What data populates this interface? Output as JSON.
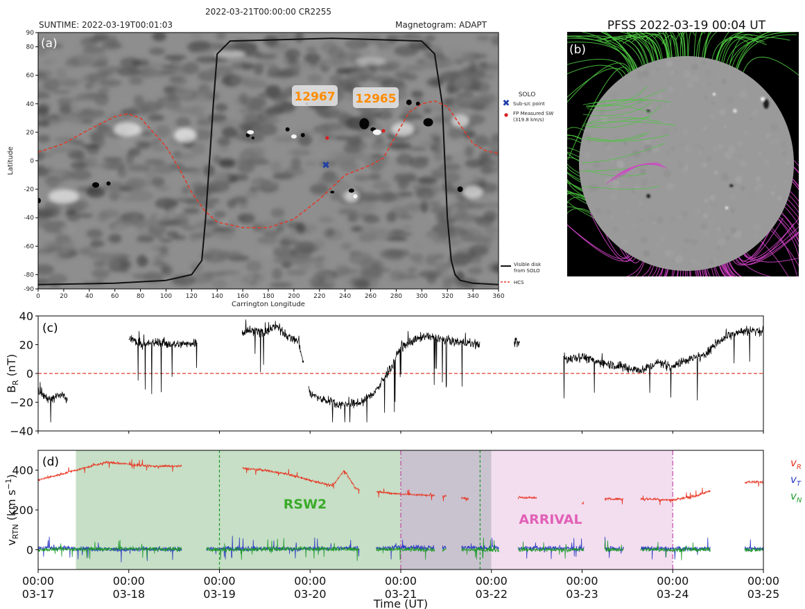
{
  "panel_a": {
    "panel_label": "(a)",
    "top_title": "2022-03-21T00:00:00 CR2255",
    "suntime": "SUNTIME: 2022-03-19T00:01:03",
    "magnetogram": "Magnetogram: ADAPT",
    "ar_labels": [
      "12967",
      "12965"
    ],
    "legend_top": {
      "title": "SOLO",
      "items": [
        "Sub-s/c point",
        "FP Measured SW",
        "(319.8 km/s)"
      ]
    },
    "legend_bottom": {
      "items": [
        "Visible disk",
        "from SOLO",
        "HCS"
      ]
    },
    "colors": {
      "disk": "#111111",
      "hcs": "#e03a2a",
      "subsc": "#1f3fa8",
      "fp": "#d62020",
      "ar_text": "#ff8c00"
    }
  },
  "panel_b": {
    "title": "PFSS 2022-03-19 00:04 UT",
    "panel_label": "(b)",
    "colors": {
      "open_green": "#4cc640",
      "open_magenta": "#d243c8",
      "disk": "#9a9a9a",
      "background": "#000000"
    }
  },
  "panel_c": {
    "panel_label": "(c)"
  },
  "panel_d": {
    "panel_label": "(d)",
    "region_labels": [
      "RSW2",
      "ARRIVAL"
    ],
    "legend": [
      "v_R",
      "v_T",
      "v_N"
    ],
    "colors": {
      "vR": "#e8321f",
      "vT": "#2b38c4",
      "vN": "#1f9a2b",
      "rsw2_shade": "#bcd9bc",
      "overlap_shade": "#c6c0cc",
      "arrival_shade": "#f2dcef",
      "rsw2_text": "#3aaa2a",
      "arrival_text": "#e160b6"
    }
  },
  "chart_data": [
    {
      "type": "line",
      "panel": "(a)",
      "title": "2022-03-21T00:00:00 CR2255",
      "xlabel": "Carrington Longitude",
      "ylabel": "Latitude",
      "xlim": [
        0,
        360
      ],
      "ylim": [
        -90,
        90
      ],
      "xticks": [
        0,
        20,
        40,
        60,
        80,
        100,
        120,
        140,
        160,
        180,
        200,
        220,
        240,
        260,
        280,
        300,
        320,
        340,
        360
      ],
      "yticks": [
        90,
        80,
        60,
        40,
        20,
        0,
        -20,
        -40,
        -60,
        -80,
        -90
      ],
      "series": [
        {
          "name": "HCS",
          "x": [
            0,
            20,
            40,
            60,
            70,
            80,
            100,
            110,
            120,
            130,
            140,
            160,
            180,
            200,
            220,
            240,
            260,
            270,
            280,
            290,
            300,
            310,
            320,
            330,
            340,
            350,
            360
          ],
          "y": [
            6,
            12,
            22,
            31,
            33,
            30,
            10,
            -5,
            -22,
            -35,
            -43,
            -47,
            -47,
            -41,
            -27,
            -10,
            -3,
            2,
            18,
            34,
            40,
            42,
            38,
            25,
            12,
            7,
            5
          ]
        },
        {
          "name": "Visible disk from SOLO",
          "x": [
            0,
            60,
            100,
            120,
            128,
            131,
            134,
            137,
            140,
            150,
            230,
            300,
            310,
            316,
            318,
            320,
            323,
            326,
            330,
            340,
            360
          ],
          "y": [
            -87,
            -86,
            -84,
            -80,
            -70,
            -40,
            0,
            40,
            75,
            84,
            86,
            84,
            75,
            40,
            0,
            -40,
            -70,
            -80,
            -84,
            -86,
            -87
          ]
        }
      ],
      "points": [
        {
          "name": "Sub-s/c point",
          "x": 225,
          "y": -3
        },
        {
          "name": "FP Measured SW",
          "x": 226,
          "y": 16
        },
        {
          "name": "FP Measured SW",
          "x": 270,
          "y": 21
        }
      ],
      "annotations": [
        {
          "text": "12967",
          "x": 218,
          "y": 45
        },
        {
          "text": "12965",
          "x": 264,
          "y": 43
        }
      ]
    },
    {
      "type": "line",
      "panel": "(c)",
      "xlabel": "",
      "ylabel": "B_R (nT)",
      "xlim": [
        "03-17 00:00",
        "03-25 00:00"
      ],
      "ylim": [
        -40,
        40
      ],
      "yticks": [
        -40,
        -20,
        0,
        20,
        40
      ],
      "reference_line": 0,
      "series": [
        {
          "name": "",
          "x": [
            "03-17 00:00",
            "03-17 03:00",
            "03-17 06:00",
            "03-17 09:00",
            "03-17 12:00",
            "03-17 16:00",
            "03-17 20:00",
            "03-18 00:00",
            "03-18 04:00",
            "03-18 08:00",
            "03-18 12:00",
            "03-18 16:00",
            "03-18 20:00",
            "03-19 00:00",
            "03-19 03:00",
            "03-19 06:00",
            "03-19 09:00",
            "03-19 12:00",
            "03-19 15:00",
            "03-19 18:00",
            "03-19 21:00",
            "03-20 00:00",
            "03-20 03:00",
            "03-20 06:00",
            "03-20 09:00",
            "03-20 12:00",
            "03-20 15:00",
            "03-20 18:00",
            "03-20 21:00",
            "03-21 00:00",
            "03-21 03:00",
            "03-21 06:00",
            "03-21 09:00",
            "03-21 12:00",
            "03-21 15:00",
            "03-21 18:00",
            "03-21 21:00",
            "03-22 00:00",
            "03-22 06:00",
            "03-22 09:00",
            "03-22 12:00",
            "03-22 16:00",
            "03-22 20:00",
            "03-23 00:00",
            "03-23 04:00",
            "03-23 08:00",
            "03-23 12:00",
            "03-23 16:00",
            "03-23 20:00",
            "03-24 00:00",
            "03-24 04:00",
            "03-24 08:00",
            "03-24 12:00",
            "03-24 16:00",
            "03-24 20:00",
            "03-25 00:00"
          ],
          "y": [
            -12,
            -18,
            -15,
            -20,
            -14,
            -10,
            null,
            24,
            20,
            22,
            20,
            21,
            22,
            27,
            null,
            29,
            30,
            28,
            33,
            26,
            22,
            -14,
            -18,
            -20,
            -22,
            -21,
            -18,
            -10,
            2,
            18,
            22,
            26,
            25,
            23,
            22,
            21,
            20,
            null,
            22,
            20,
            18,
            16,
            10,
            12,
            8,
            6,
            4,
            2,
            8,
            5,
            10,
            12,
            22,
            28,
            30,
            29
          ]
        }
      ]
    },
    {
      "type": "line",
      "panel": "(d)",
      "xlabel": "Time (UT)",
      "ylabel": "v_RTN (km s^-1)",
      "xlim": [
        "03-17 00:00",
        "03-25 00:00"
      ],
      "ylim": [
        -100,
        500
      ],
      "yticks": [
        0,
        200,
        400
      ],
      "xticks": [
        "00:00 03-17",
        "00:00 03-18",
        "00:00 03-19",
        "00:00 03-20",
        "00:00 03-21",
        "00:00 03-22",
        "00:00 03-23",
        "00:00 03-24",
        "00:00 03-25"
      ],
      "series": [
        {
          "name": "v_R",
          "x": [
            "03-17 00:00",
            "03-17 06:00",
            "03-17 12:00",
            "03-17 18:00",
            "03-18 00:00",
            "03-18 06:00",
            "03-18 12:00",
            "03-18 18:00",
            "03-19 00:00",
            "03-19 06:00",
            "03-19 12:00",
            "03-19 18:00",
            "03-20 00:00",
            "03-20 06:00",
            "03-20 09:00",
            "03-20 12:00",
            "03-20 18:00",
            "03-21 00:00",
            "03-21 06:00",
            "03-21 12:00",
            "03-21 18:00",
            "03-22 00:00",
            "03-22 06:00",
            "03-22 12:00",
            "03-22 18:00",
            "03-23 00:00",
            "03-23 06:00",
            "03-23 12:00",
            "03-23 18:00",
            "03-24 00:00",
            "03-24 06:00",
            "03-24 12:00",
            "03-24 18:00",
            "03-25 00:00"
          ],
          "y": [
            350,
            380,
            410,
            440,
            430,
            420,
            420,
            420,
            null,
            410,
            400,
            380,
            350,
            320,
            400,
            310,
            290,
            280,
            275,
            270,
            255,
            null,
            265,
            260,
            null,
            235,
            255,
            255,
            255,
            250,
            270,
            310,
            340,
            340
          ]
        },
        {
          "name": "v_T",
          "x": [
            "03-17 00:00",
            "03-18 00:00",
            "03-19 00:00",
            "03-20 00:00",
            "03-21 00:00",
            "03-22 00:00",
            "03-23 00:00",
            "03-24 00:00",
            "03-25 00:00"
          ],
          "y": [
            10,
            0,
            5,
            5,
            10,
            10,
            5,
            5,
            5
          ]
        },
        {
          "name": "v_N",
          "x": [
            "03-17 00:00",
            "03-18 00:00",
            "03-19 00:00",
            "03-20 00:00",
            "03-21 00:00",
            "03-22 00:00",
            "03-23 00:00",
            "03-24 00:00",
            "03-25 00:00"
          ],
          "y": [
            0,
            5,
            0,
            5,
            0,
            0,
            0,
            0,
            0
          ]
        }
      ],
      "shaded_regions": [
        {
          "label": "RSW2",
          "x": [
            "03-17 10:00",
            "03-22 00:00"
          ]
        },
        {
          "label": "ARRIVAL",
          "x": [
            "03-22 00:00",
            "03-24 00:00"
          ]
        }
      ],
      "vertical_lines": [
        {
          "style": "green-dashed",
          "x": "03-19 00:00"
        },
        {
          "style": "green-dashed",
          "x": "03-21 21:00"
        },
        {
          "style": "magenta-dashdot",
          "x": "03-21 00:00"
        },
        {
          "style": "magenta-dashdot",
          "x": "03-24 00:00"
        }
      ]
    }
  ]
}
